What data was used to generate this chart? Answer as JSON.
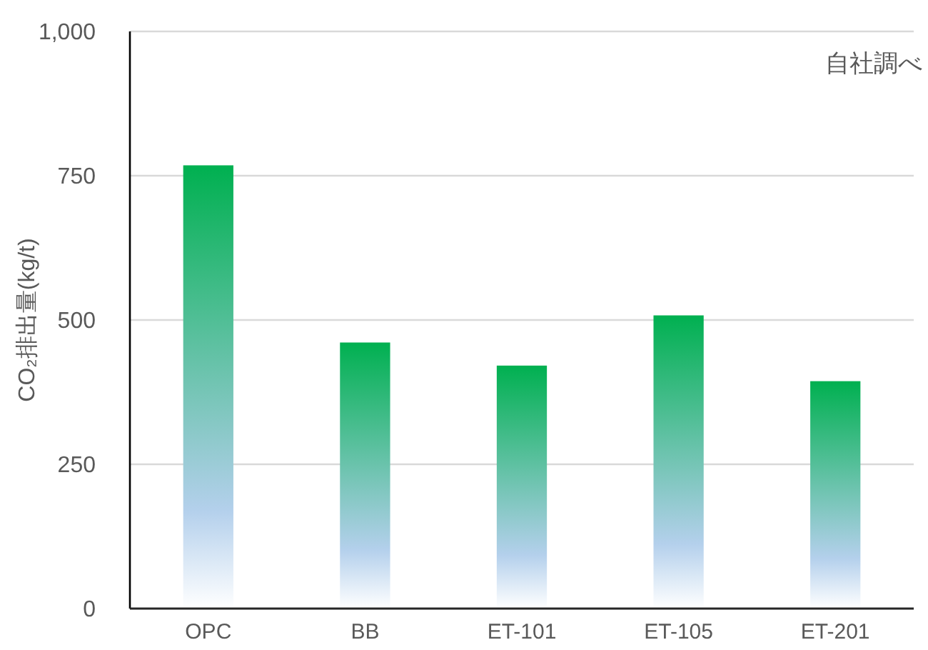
{
  "chart_data": {
    "type": "bar",
    "categories": [
      "OPC",
      "BB",
      "ET-101",
      "ET-105",
      "ET-201"
    ],
    "values": [
      768,
      461,
      421,
      508,
      394
    ],
    "color": "#00b050",
    "ylabel": "CO₂排出量(kg/t)",
    "ylim": [
      0,
      1000
    ],
    "yticks": [
      0,
      250,
      500,
      750,
      {
        "value": 1000,
        "label": "1,000"
      }
    ],
    "grid": "y",
    "annotations": [
      "自社調べ"
    ]
  }
}
